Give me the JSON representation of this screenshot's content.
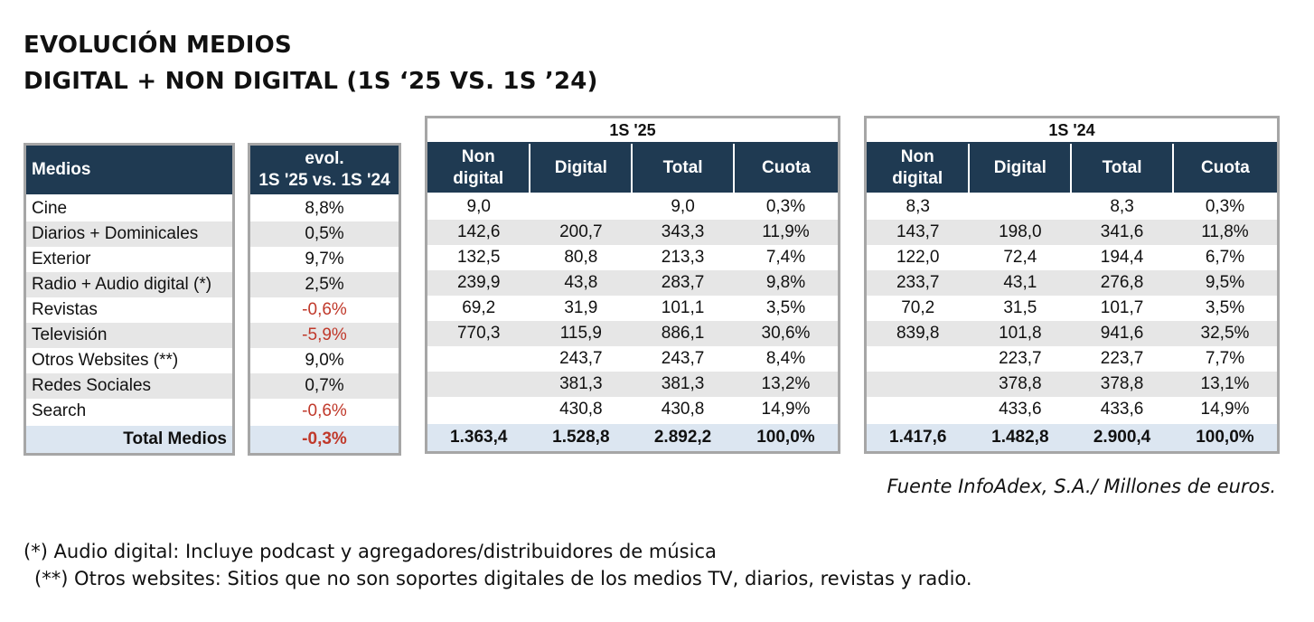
{
  "title": {
    "line1": "EVOLUCIÓN MEDIOS",
    "line2": "DIGITAL + NON DIGITAL (1S ‘25 VS. 1S ’24)"
  },
  "headers": {
    "medios": "Medios",
    "evol_line1": "evol.",
    "evol_line2": "1S '25 vs. 1S '24",
    "period_25": "1S '25",
    "period_24": "1S '24",
    "non_digital_line1": "Non",
    "non_digital_line2": "digital",
    "digital": "Digital",
    "total": "Total",
    "cuota": "Cuota"
  },
  "rows": [
    {
      "medio": "Cine",
      "evol": "8,8%",
      "neg": false,
      "y25": {
        "nd": "9,0",
        "d": "",
        "t": "9,0",
        "c": "0,3%"
      },
      "y24": {
        "nd": "8,3",
        "d": "",
        "t": "8,3",
        "c": "0,3%"
      }
    },
    {
      "medio": "Diarios + Dominicales",
      "evol": "0,5%",
      "neg": false,
      "y25": {
        "nd": "142,6",
        "d": "200,7",
        "t": "343,3",
        "c": "11,9%"
      },
      "y24": {
        "nd": "143,7",
        "d": "198,0",
        "t": "341,6",
        "c": "11,8%"
      }
    },
    {
      "medio": "Exterior",
      "evol": "9,7%",
      "neg": false,
      "y25": {
        "nd": "132,5",
        "d": "80,8",
        "t": "213,3",
        "c": "7,4%"
      },
      "y24": {
        "nd": "122,0",
        "d": "72,4",
        "t": "194,4",
        "c": "6,7%"
      }
    },
    {
      "medio": "Radio + Audio digital (*)",
      "evol": "2,5%",
      "neg": false,
      "y25": {
        "nd": "239,9",
        "d": "43,8",
        "t": "283,7",
        "c": "9,8%"
      },
      "y24": {
        "nd": "233,7",
        "d": "43,1",
        "t": "276,8",
        "c": "9,5%"
      }
    },
    {
      "medio": "Revistas",
      "evol": "-0,6%",
      "neg": true,
      "y25": {
        "nd": "69,2",
        "d": "31,9",
        "t": "101,1",
        "c": "3,5%"
      },
      "y24": {
        "nd": "70,2",
        "d": "31,5",
        "t": "101,7",
        "c": "3,5%"
      }
    },
    {
      "medio": "Televisión",
      "evol": "-5,9%",
      "neg": true,
      "y25": {
        "nd": "770,3",
        "d": "115,9",
        "t": "886,1",
        "c": "30,6%"
      },
      "y24": {
        "nd": "839,8",
        "d": "101,8",
        "t": "941,6",
        "c": "32,5%"
      }
    },
    {
      "medio": "Otros Websites (**)",
      "evol": "9,0%",
      "neg": false,
      "y25": {
        "nd": "",
        "d": "243,7",
        "t": "243,7",
        "c": "8,4%"
      },
      "y24": {
        "nd": "",
        "d": "223,7",
        "t": "223,7",
        "c": "7,7%"
      }
    },
    {
      "medio": "Redes Sociales",
      "evol": "0,7%",
      "neg": false,
      "y25": {
        "nd": "",
        "d": "381,3",
        "t": "381,3",
        "c": "13,2%"
      },
      "y24": {
        "nd": "",
        "d": "378,8",
        "t": "378,8",
        "c": "13,1%"
      }
    },
    {
      "medio": "Search",
      "evol": "-0,6%",
      "neg": true,
      "y25": {
        "nd": "",
        "d": "430,8",
        "t": "430,8",
        "c": "14,9%"
      },
      "y24": {
        "nd": "",
        "d": "433,6",
        "t": "433,6",
        "c": "14,9%"
      }
    }
  ],
  "total": {
    "medio": "Total Medios",
    "evol": "-0,3%",
    "neg": true,
    "y25": {
      "nd": "1.363,4",
      "d": "1.528,8",
      "t": "2.892,2",
      "c": "100,0%"
    },
    "y24": {
      "nd": "1.417,6",
      "d": "1.482,8",
      "t": "2.900,4",
      "c": "100,0%"
    }
  },
  "colors": {
    "header_bg": "#1f3a52",
    "total_bg": "#dce6f1",
    "stripe_bg": "#e6e6e6",
    "negative": "#c0392b"
  },
  "source": "Fuente InfoAdex, S.A./ Millones de euros.",
  "notes": [
    "(*) Audio digital: Incluye podcast y agregadores/distribuidores de música",
    "(**) Otros websites: Sitios que no son soportes digitales de los medios TV, diarios, revistas y radio."
  ]
}
